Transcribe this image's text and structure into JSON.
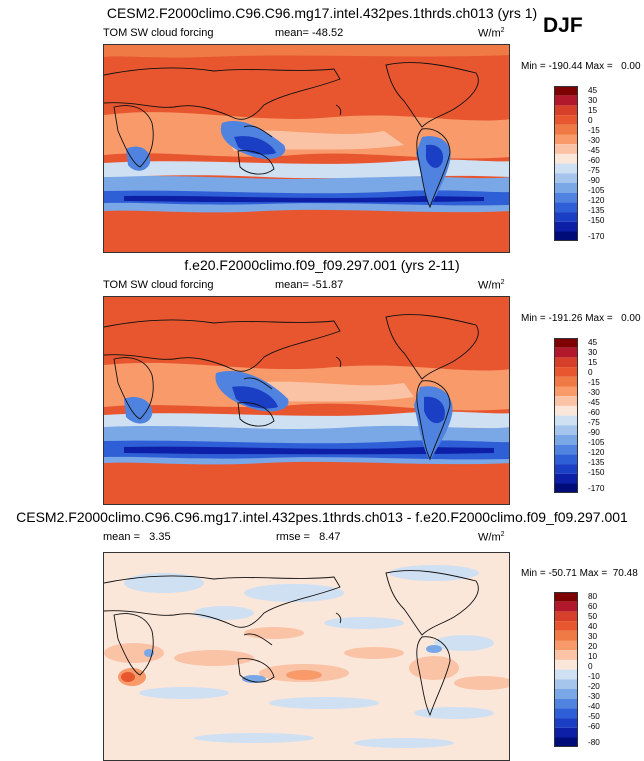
{
  "season": "DJF",
  "panels": [
    {
      "title": "CESM2.F2000climo.C96.C96.mg17.intel.432pes.1thrds.ch013 (yrs 1)",
      "variable": "TOM SW cloud forcing",
      "mean_label": "mean=",
      "mean": "-48.52",
      "rmse_label": "",
      "rmse": "",
      "units": "W/m",
      "units_sup": "2",
      "min_label": "Min =",
      "min": "-190.44",
      "max_label": "Max =",
      "max": "0.00",
      "colorbar_ticks": [
        "45",
        "30",
        "15",
        "0",
        "-15",
        "-30",
        "-45",
        "-60",
        "-75",
        "-90",
        "-105",
        "-120",
        "-135",
        "-150",
        "-170"
      ]
    },
    {
      "title": "f.e20.F2000climo.f09_f09.297.001 (yrs 2-11)",
      "variable": "TOM SW cloud forcing",
      "mean_label": "mean=",
      "mean": "-51.87",
      "rmse_label": "",
      "rmse": "",
      "units": "W/m",
      "units_sup": "2",
      "min_label": "Min =",
      "min": "-191.26",
      "max_label": "Max =",
      "max": "0.00",
      "colorbar_ticks": [
        "45",
        "30",
        "15",
        "0",
        "-15",
        "-30",
        "-45",
        "-60",
        "-75",
        "-90",
        "-105",
        "-120",
        "-135",
        "-150",
        "-170"
      ]
    },
    {
      "title": "CESM2.F2000climo.C96.C96.mg17.intel.432pes.1thrds.ch013 - f.e20.F2000climo.f09_f09.297.001",
      "variable": "",
      "mean_label": "mean =",
      "mean": "3.35",
      "rmse_label": "rmse =",
      "rmse": "8.47",
      "units": "W/m",
      "units_sup": "2",
      "min_label": "Min =",
      "min": "-50.71",
      "max_label": "Max =",
      "max": "70.48",
      "colorbar_ticks": [
        "80",
        "60",
        "50",
        "40",
        "30",
        "20",
        "10",
        "0",
        "-10",
        "-20",
        "-30",
        "-40",
        "-50",
        "-60",
        "-80"
      ]
    }
  ],
  "chart_data": [
    {
      "type": "heatmap",
      "map_type": "global lat-lon contour map",
      "title": "CESM2.F2000climo.C96.C96.mg17.intel.432pes.1thrds.ch013 (yrs 1)",
      "colorbar_levels": [
        45,
        30,
        15,
        0,
        -15,
        -30,
        -45,
        -60,
        -75,
        -90,
        -105,
        -120,
        -135,
        -150,
        -170
      ],
      "colors": [
        "#7f0000",
        "#b2182b",
        "#d6402b",
        "#e8562f",
        "#f07a45",
        "#f89a6a",
        "#fbc3a6",
        "#fbe6da",
        "#cfe0f3",
        "#a6c5ec",
        "#7aa7e6",
        "#4f83df",
        "#2f5fd6",
        "#1a3fc4",
        "#0d1fa6",
        "#000c78"
      ],
      "mean": -48.52,
      "min": -190.44,
      "max": 0.0
    },
    {
      "type": "heatmap",
      "map_type": "global lat-lon contour map",
      "title": "f.e20.F2000climo.f09_f09.297.001 (yrs 2-11)",
      "colorbar_levels": [
        45,
        30,
        15,
        0,
        -15,
        -30,
        -45,
        -60,
        -75,
        -90,
        -105,
        -120,
        -135,
        -150,
        -170
      ],
      "colors": [
        "#7f0000",
        "#b2182b",
        "#d6402b",
        "#e8562f",
        "#f07a45",
        "#f89a6a",
        "#fbc3a6",
        "#fbe6da",
        "#cfe0f3",
        "#a6c5ec",
        "#7aa7e6",
        "#4f83df",
        "#2f5fd6",
        "#1a3fc4",
        "#0d1fa6",
        "#000c78"
      ],
      "mean": -51.87,
      "min": -191.26,
      "max": 0.0
    },
    {
      "type": "heatmap",
      "map_type": "global lat-lon difference contour map",
      "title": "CESM2.F2000climo.C96.C96.mg17.intel.432pes.1thrds.ch013 - f.e20.F2000climo.f09_f09.297.001",
      "colorbar_levels": [
        80,
        60,
        50,
        40,
        30,
        20,
        10,
        0,
        -10,
        -20,
        -30,
        -40,
        -50,
        -60,
        -80
      ],
      "colors": [
        "#7f0000",
        "#b2182b",
        "#d6402b",
        "#e8562f",
        "#f07a45",
        "#f89a6a",
        "#fbc3a6",
        "#fbe6da",
        "#cfe0f3",
        "#a6c5ec",
        "#7aa7e6",
        "#4f83df",
        "#2f5fd6",
        "#1a3fc4",
        "#0d1fa6",
        "#000c78"
      ],
      "mean": 3.35,
      "rmse": 8.47,
      "min": -50.71,
      "max": 70.48
    }
  ]
}
